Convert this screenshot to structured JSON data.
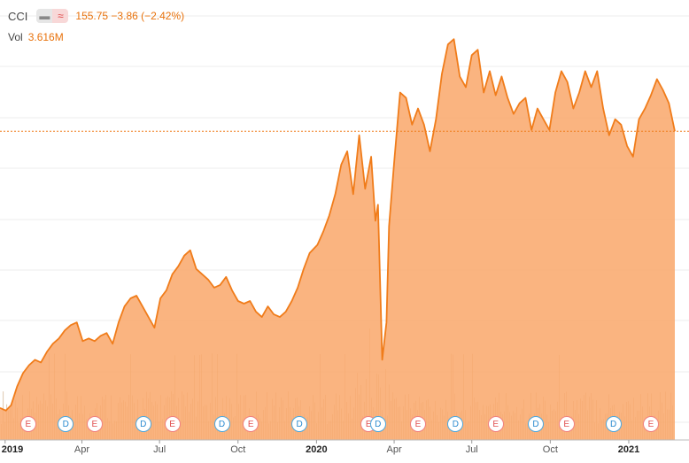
{
  "header": {
    "symbol": "CCI",
    "toggle_left": "▬",
    "toggle_right": "≈",
    "price_text": "155.75 −3.86 (−2.42%)",
    "volume_label": "Vol",
    "volume_value": "3.616M"
  },
  "colors": {
    "line": "#f07c1a",
    "area": "#f9aa6e",
    "volume": "#c8a27a",
    "event_E": "#e05050",
    "event_D": "#2a8ad0",
    "grid": "#eeeeee"
  },
  "chart_data": {
    "type": "area",
    "title": "",
    "xlabel": "",
    "ylabel": "",
    "grid": true,
    "x_ticks": [
      {
        "label": "2019",
        "date": "2019-01",
        "bold": true
      },
      {
        "label": "Apr",
        "date": "2019-04"
      },
      {
        "label": "Jul",
        "date": "2019-07"
      },
      {
        "label": "Oct",
        "date": "2019-10"
      },
      {
        "label": "2020",
        "date": "2020-01",
        "bold": true
      },
      {
        "label": "Apr",
        "date": "2020-04"
      },
      {
        "label": "Jul",
        "date": "2020-07"
      },
      {
        "label": "Oct",
        "date": "2020-10"
      },
      {
        "label": "2021",
        "date": "2021-01",
        "bold": true
      }
    ],
    "x_range": [
      "2018-12-26",
      "2021-02-24"
    ],
    "y_range": [
      98,
      177
    ],
    "last_price": 155.75,
    "series": [
      {
        "x": [
          "2018-12-26",
          "2019-01-02",
          "2019-01-08",
          "2019-01-15",
          "2019-01-22",
          "2019-01-29",
          "2019-02-05",
          "2019-02-12",
          "2019-02-19",
          "2019-02-26",
          "2019-03-05",
          "2019-03-12",
          "2019-03-19",
          "2019-03-26",
          "2019-04-02",
          "2019-04-09",
          "2019-04-16",
          "2019-04-23",
          "2019-04-30",
          "2019-05-07",
          "2019-05-14",
          "2019-05-21",
          "2019-05-28",
          "2019-06-04",
          "2019-06-11",
          "2019-06-18",
          "2019-06-25",
          "2019-07-02",
          "2019-07-09",
          "2019-07-16",
          "2019-07-23",
          "2019-07-30",
          "2019-08-06",
          "2019-08-13",
          "2019-08-20",
          "2019-08-27",
          "2019-09-03",
          "2019-09-10",
          "2019-09-17",
          "2019-09-24",
          "2019-10-01",
          "2019-10-08",
          "2019-10-15",
          "2019-10-22",
          "2019-10-29",
          "2019-11-05",
          "2019-11-12",
          "2019-11-19",
          "2019-11-26",
          "2019-12-03",
          "2019-12-10",
          "2019-12-17",
          "2019-12-24",
          "2020-01-02",
          "2020-01-09",
          "2020-01-16",
          "2020-01-23",
          "2020-01-30",
          "2020-02-06",
          "2020-02-13",
          "2020-02-20",
          "2020-02-27",
          "2020-03-05",
          "2020-03-10",
          "2020-03-13",
          "2020-03-18",
          "2020-03-23",
          "2020-03-26",
          "2020-04-01",
          "2020-04-08",
          "2020-04-15",
          "2020-04-22",
          "2020-04-29",
          "2020-05-06",
          "2020-05-13",
          "2020-05-20",
          "2020-05-27",
          "2020-06-03",
          "2020-06-10",
          "2020-06-17",
          "2020-06-24",
          "2020-07-01",
          "2020-07-08",
          "2020-07-15",
          "2020-07-22",
          "2020-07-29",
          "2020-08-05",
          "2020-08-12",
          "2020-08-19",
          "2020-08-26",
          "2020-09-02",
          "2020-09-09",
          "2020-09-16",
          "2020-09-23",
          "2020-09-30",
          "2020-10-07",
          "2020-10-14",
          "2020-10-21",
          "2020-10-28",
          "2020-11-04",
          "2020-11-11",
          "2020-11-18",
          "2020-11-25",
          "2020-12-02",
          "2020-12-09",
          "2020-12-16",
          "2020-12-23",
          "2020-12-30",
          "2021-01-06",
          "2021-01-13",
          "2021-01-20",
          "2021-01-27",
          "2021-02-03",
          "2021-02-10",
          "2021-02-17",
          "2021-02-24"
        ],
        "values": [
          104.0,
          103.5,
          104.5,
          108.0,
          110.5,
          112.0,
          113.0,
          112.5,
          114.5,
          116.0,
          117.0,
          118.5,
          119.5,
          120.0,
          116.5,
          117.0,
          116.5,
          117.5,
          118.0,
          116.0,
          120.0,
          123.0,
          124.5,
          125.0,
          123.0,
          121.0,
          119.0,
          124.5,
          126.0,
          129.0,
          130.5,
          132.5,
          133.5,
          130.0,
          129.0,
          128.0,
          126.5,
          127.0,
          128.5,
          126.0,
          124.0,
          123.5,
          124.0,
          122.0,
          121.0,
          123.0,
          121.5,
          121.0,
          122.0,
          124.0,
          126.5,
          130.0,
          133.0,
          134.5,
          137.0,
          140.0,
          144.0,
          149.5,
          152.0,
          144.0,
          155.0,
          145.0,
          151.0,
          139.0,
          142.0,
          113.0,
          120.0,
          138.0,
          150.0,
          163.0,
          162.0,
          157.0,
          160.0,
          157.0,
          152.0,
          158.0,
          166.5,
          172.0,
          173.0,
          166.0,
          164.0,
          170.0,
          171.0,
          163.0,
          167.0,
          162.5,
          166.0,
          162.0,
          159.0,
          161.0,
          162.0,
          156.0,
          160.0,
          158.0,
          156.0,
          163.0,
          167.0,
          165.0,
          160.0,
          163.0,
          167.0,
          164.0,
          167.0,
          160.0,
          155.0,
          158.0,
          157.0,
          153.0,
          151.0,
          158.0,
          160.0,
          162.5,
          165.5,
          163.5,
          161.0,
          155.75
        ]
      }
    ],
    "events": [
      {
        "type": "E",
        "date": "2019-01-28"
      },
      {
        "type": "D",
        "date": "2019-03-13"
      },
      {
        "type": "E",
        "date": "2019-04-16"
      },
      {
        "type": "D",
        "date": "2019-06-12"
      },
      {
        "type": "E",
        "date": "2019-07-16"
      },
      {
        "type": "D",
        "date": "2019-09-12"
      },
      {
        "type": "E",
        "date": "2019-10-16"
      },
      {
        "type": "D",
        "date": "2019-12-12"
      },
      {
        "type": "E",
        "date": "2020-03-02"
      },
      {
        "type": "D",
        "date": "2020-03-13"
      },
      {
        "type": "E",
        "date": "2020-04-29"
      },
      {
        "type": "D",
        "date": "2020-06-12"
      },
      {
        "type": "E",
        "date": "2020-07-29"
      },
      {
        "type": "D",
        "date": "2020-09-14"
      },
      {
        "type": "E",
        "date": "2020-10-20"
      },
      {
        "type": "D",
        "date": "2020-12-14"
      },
      {
        "type": "E",
        "date": "2021-01-27"
      }
    ]
  }
}
